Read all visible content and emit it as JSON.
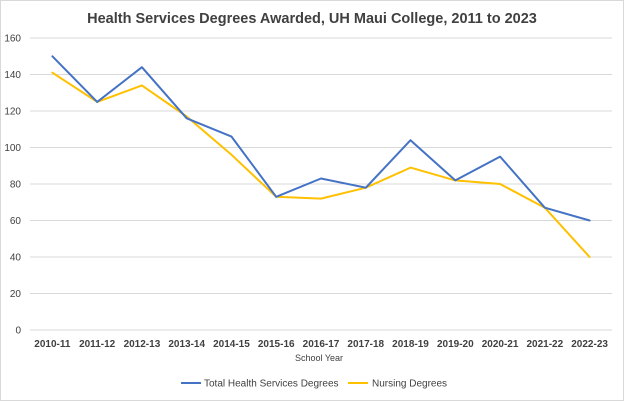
{
  "chart_data": {
    "type": "line",
    "title": "Health Services Degrees Awarded, UH Maui College, 2011 to 2023",
    "xlabel": "School Year",
    "ylabel": "",
    "ylim": [
      0,
      160
    ],
    "yticks": [
      "0",
      "20",
      "40",
      "60",
      "80",
      "100",
      "120",
      "140",
      "160"
    ],
    "grid": true,
    "legend_position": "bottom",
    "categories": [
      "2010-11",
      "2011-12",
      "2012-13",
      "2013-14",
      "2014-15",
      "2015-16",
      "2016-17",
      "2017-18",
      "2018-19",
      "2019-20",
      "2020-21",
      "2021-22",
      "2022-23"
    ],
    "series": [
      {
        "name": "Total Health Services Degrees",
        "color": "#4472C4",
        "values": [
          150,
          125,
          144,
          116,
          106,
          73,
          83,
          78,
          104,
          82,
          95,
          67,
          60
        ]
      },
      {
        "name": "Nursing Degrees",
        "color": "#FFC000",
        "values": [
          141,
          125,
          134,
          117,
          96,
          73,
          72,
          78,
          89,
          82,
          80,
          67,
          40
        ]
      }
    ]
  }
}
